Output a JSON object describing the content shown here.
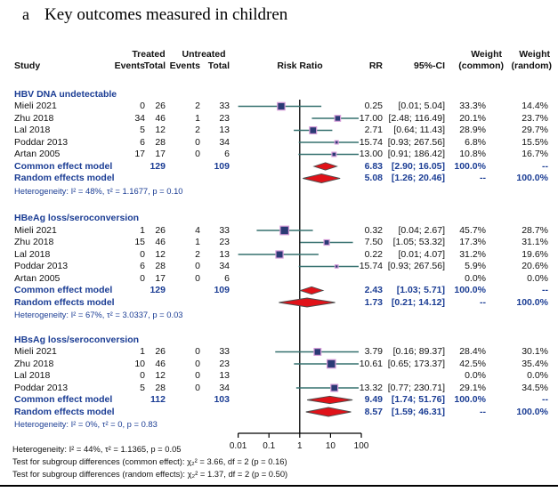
{
  "title": {
    "panel": "a",
    "text": "Key outcomes measured in children"
  },
  "header": {
    "study": "Study",
    "treated": "Treated",
    "untreated": "Untreated",
    "events": "Events",
    "total": "Total",
    "risk_ratio": "Risk Ratio",
    "rr": "RR",
    "ci": "95%-CI",
    "weight": "Weight",
    "common": "(common)",
    "random": "(random)"
  },
  "colors": {
    "blue_text": "#1b3d94",
    "ci_line": "#35706f",
    "square_fill": "#2b3a75",
    "square_border": "#d59cd8",
    "diamond_fill": "#e01219",
    "diamond_edge": "#4d4d4d",
    "axis": "#000000"
  },
  "chart_data": {
    "type": "forest",
    "x_scale": "log10",
    "axis_ticks": [
      0.01,
      0.1,
      1,
      10,
      100
    ],
    "axis_labels": [
      "0.01",
      "0.1",
      "1",
      "10",
      "100"
    ],
    "groups": [
      {
        "label": "HBV DNA undetectable",
        "studies": [
          {
            "study": "Mieli 2021",
            "te": "0",
            "tt": "26",
            "ue": "2",
            "ut": "33",
            "rr": "0.25",
            "rr_v": 0.25,
            "lo": 0.01,
            "hi": 5.04,
            "ci": "[0.01; 5.04]",
            "wc": "33.3%",
            "wr": "14.4%",
            "wc_v": 33.3
          },
          {
            "study": "Zhu 2018",
            "te": "34",
            "tt": "46",
            "ue": "1",
            "ut": "23",
            "rr": "17.00",
            "rr_v": 17.0,
            "lo": 2.48,
            "hi": 116.49,
            "ci": "[2.48; 116.49]",
            "wc": "20.1%",
            "wr": "23.7%",
            "wc_v": 20.1
          },
          {
            "study": "Lal 2018",
            "te": "5",
            "tt": "12",
            "ue": "2",
            "ut": "13",
            "rr": "2.71",
            "rr_v": 2.71,
            "lo": 0.64,
            "hi": 11.43,
            "ci": "[0.64; 11.43]",
            "wc": "28.9%",
            "wr": "29.7%",
            "wc_v": 28.9
          },
          {
            "study": "Poddar 2013",
            "te": "6",
            "tt": "28",
            "ue": "0",
            "ut": "34",
            "rr": "15.74",
            "rr_v": 15.74,
            "lo": 0.93,
            "hi": 267.56,
            "ci": "[0.93; 267.56]",
            "wc": "6.8%",
            "wr": "15.5%",
            "wc_v": 6.8
          },
          {
            "study": "Artan 2005",
            "te": "17",
            "tt": "17",
            "ue": "0",
            "ut": "6",
            "rr": "13.00",
            "rr_v": 13.0,
            "lo": 0.91,
            "hi": 186.42,
            "ci": "[0.91; 186.42]",
            "wc": "10.8%",
            "wr": "16.7%",
            "wc_v": 10.8
          }
        ],
        "common": {
          "label": "Common effect model",
          "tt": "129",
          "ut": "109",
          "rr": "6.83",
          "rr_v": 6.83,
          "lo": 2.9,
          "hi": 16.05,
          "ci": "[2.90; 16.05]",
          "wc": "100.0%",
          "wr": "--"
        },
        "random": {
          "label": "Random effects model",
          "rr": "5.08",
          "rr_v": 5.08,
          "lo": 1.26,
          "hi": 20.46,
          "ci": "[1.26; 20.46]",
          "wc": "--",
          "wr": "100.0%"
        },
        "heterogeneity": "Heterogeneity: I² = 48%, τ² = 1.1677, p = 0.10"
      },
      {
        "label": "HBeAg loss/seroconversion",
        "studies": [
          {
            "study": "Mieli 2021",
            "te": "1",
            "tt": "26",
            "ue": "4",
            "ut": "33",
            "rr": "0.32",
            "rr_v": 0.32,
            "lo": 0.04,
            "hi": 2.67,
            "ci": "[0.04; 2.67]",
            "wc": "45.7%",
            "wr": "28.7%",
            "wc_v": 45.7
          },
          {
            "study": "Zhu 2018",
            "te": "15",
            "tt": "46",
            "ue": "1",
            "ut": "23",
            "rr": "7.50",
            "rr_v": 7.5,
            "lo": 1.05,
            "hi": 53.32,
            "ci": "[1.05; 53.32]",
            "wc": "17.3%",
            "wr": "31.1%",
            "wc_v": 17.3
          },
          {
            "study": "Lal 2018",
            "te": "0",
            "tt": "12",
            "ue": "2",
            "ut": "13",
            "rr": "0.22",
            "rr_v": 0.22,
            "lo": 0.01,
            "hi": 4.07,
            "ci": "[0.01; 4.07]",
            "wc": "31.2%",
            "wr": "19.6%",
            "wc_v": 31.2
          },
          {
            "study": "Poddar 2013",
            "te": "6",
            "tt": "28",
            "ue": "0",
            "ut": "34",
            "rr": "15.74",
            "rr_v": 15.74,
            "lo": 0.93,
            "hi": 267.56,
            "ci": "[0.93; 267.56]",
            "wc": "5.9%",
            "wr": "20.6%",
            "wc_v": 5.9
          },
          {
            "study": "Artan 2005",
            "te": "0",
            "tt": "17",
            "ue": "0",
            "ut": "6",
            "rr": "",
            "rr_v": null,
            "lo": null,
            "hi": null,
            "ci": "",
            "wc": "0.0%",
            "wr": "0.0%",
            "wc_v": 0
          }
        ],
        "common": {
          "label": "Common effect model",
          "tt": "129",
          "ut": "109",
          "rr": "2.43",
          "rr_v": 2.43,
          "lo": 1.03,
          "hi": 5.71,
          "ci": "[1.03; 5.71]",
          "wc": "100.0%",
          "wr": "--"
        },
        "random": {
          "label": "Random effects model",
          "rr": "1.73",
          "rr_v": 1.73,
          "lo": 0.21,
          "hi": 14.12,
          "ci": "[0.21; 14.12]",
          "wc": "--",
          "wr": "100.0%"
        },
        "heterogeneity": "Heterogeneity: I² = 67%, τ² = 3.0337, p = 0.03"
      },
      {
        "label": "HBsAg loss/seroconversion",
        "studies": [
          {
            "study": "Mieli 2021",
            "te": "1",
            "tt": "26",
            "ue": "0",
            "ut": "33",
            "rr": "3.79",
            "rr_v": 3.79,
            "lo": 0.16,
            "hi": 89.37,
            "ci": "[0.16; 89.37]",
            "wc": "28.4%",
            "wr": "30.1%",
            "wc_v": 28.4
          },
          {
            "study": "Zhu 2018",
            "te": "10",
            "tt": "46",
            "ue": "0",
            "ut": "23",
            "rr": "10.61",
            "rr_v": 10.61,
            "lo": 0.65,
            "hi": 173.37,
            "ci": "[0.65; 173.37]",
            "wc": "42.5%",
            "wr": "35.4%",
            "wc_v": 42.5
          },
          {
            "study": "Lal 2018",
            "te": "0",
            "tt": "12",
            "ue": "0",
            "ut": "13",
            "rr": "",
            "rr_v": null,
            "lo": null,
            "hi": null,
            "ci": "",
            "wc": "0.0%",
            "wr": "0.0%",
            "wc_v": 0
          },
          {
            "study": "Poddar 2013",
            "te": "5",
            "tt": "28",
            "ue": "0",
            "ut": "34",
            "rr": "13.32",
            "rr_v": 13.32,
            "lo": 0.77,
            "hi": 230.71,
            "ci": "[0.77; 230.71]",
            "wc": "29.1%",
            "wr": "34.5%",
            "wc_v": 29.1
          }
        ],
        "common": {
          "label": "Common effect model",
          "tt": "112",
          "ut": "103",
          "rr": "9.49",
          "rr_v": 9.49,
          "lo": 1.74,
          "hi": 51.76,
          "ci": "[1.74; 51.76]",
          "wc": "100.0%",
          "wr": "--"
        },
        "random": {
          "label": "Random effects model",
          "rr": "8.57",
          "rr_v": 8.57,
          "lo": 1.59,
          "hi": 46.31,
          "ci": "[1.59; 46.31]",
          "wc": "--",
          "wr": "100.0%"
        },
        "heterogeneity": "Heterogeneity: I² = 0%, τ² = 0, p = 0.83"
      }
    ],
    "footer": {
      "line1": "Heterogeneity: I² = 44%, τ² = 1.1365, p = 0.05",
      "line2": "Test for subgroup differences (common effect): χ₂² = 3.66, df = 2 (p = 0.16)",
      "line3": "Test for subgroup differences (random effects): χ₂² = 1.37, df = 2 (p = 0.50)"
    }
  }
}
